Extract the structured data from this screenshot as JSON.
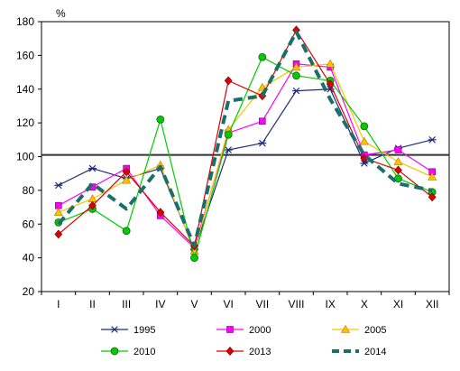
{
  "chart_data": {
    "type": "line",
    "title": "",
    "xlabel": "",
    "ylabel": "%",
    "ylim": [
      20,
      180
    ],
    "yticks": [
      20,
      40,
      60,
      80,
      100,
      120,
      140,
      160,
      180
    ],
    "grid": false,
    "reference_line": {
      "y": 101,
      "color": "#333333"
    },
    "legend_position": "bottom",
    "categories": [
      "I",
      "II",
      "III",
      "IV",
      "V",
      "VI",
      "VII",
      "VIII",
      "IX",
      "X",
      "XI",
      "XII"
    ],
    "series": [
      {
        "name": "1995",
        "color": "#1f2d7a",
        "marker": "star",
        "dashed": false,
        "values": [
          83,
          93,
          87,
          93,
          45,
          104,
          108,
          139,
          140,
          96,
          105,
          110
        ]
      },
      {
        "name": "2000",
        "color": "#ff00ff",
        "marker": "square",
        "dashed": false,
        "values": [
          71,
          82,
          93,
          65,
          46,
          114,
          121,
          155,
          153,
          101,
          104,
          91
        ]
      },
      {
        "name": "2005",
        "color": "#ffc000",
        "marker": "triangle",
        "dashed": false,
        "values": [
          67,
          75,
          86,
          95,
          44,
          116,
          141,
          153,
          155,
          109,
          97,
          88
        ]
      },
      {
        "name": "2010",
        "color": "#00cc00",
        "marker": "circle",
        "dashed": false,
        "values": [
          61,
          69,
          56,
          122,
          40,
          113,
          159,
          148,
          145,
          118,
          87,
          79
        ]
      },
      {
        "name": "2013",
        "color": "#dd0000",
        "marker": "diamond",
        "dashed": false,
        "values": [
          54,
          71,
          91,
          67,
          47,
          145,
          136,
          175,
          143,
          99,
          92,
          76
        ]
      },
      {
        "name": "2014",
        "color": "#1a6f6a",
        "marker": "none",
        "dashed": true,
        "values": [
          60,
          84,
          69,
          94,
          47,
          133,
          136,
          174,
          134,
          101,
          84,
          80
        ]
      }
    ]
  }
}
